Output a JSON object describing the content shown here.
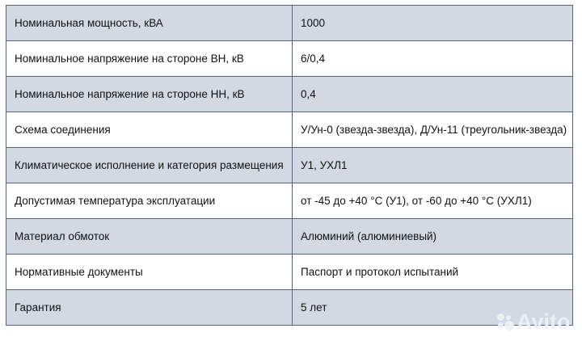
{
  "table": {
    "rows": [
      {
        "param": "Номинальная мощность, кВА",
        "value": "1000"
      },
      {
        "param": "Номинальное напряжение на стороне ВН, кВ",
        "value": "6/0,4"
      },
      {
        "param": "Номинальное напряжение на стороне НН, кВ",
        "value": "0,4"
      },
      {
        "param": "Схема соединения",
        "value": "У/Ун-0 (звезда-звезда), Д/Ун-11 (треугольник-звезда)"
      },
      {
        "param": "Климатическое исполнение и категория размещения",
        "value": "У1, УХЛ1"
      },
      {
        "param": "Допустимая температура эксплуатации",
        "value": "от -45 до +40 °С (У1), от -60 до +40 °С (УХЛ1)"
      },
      {
        "param": "Материал обмоток",
        "value": "Алюминий (алюминиевый)"
      },
      {
        "param": "Нормативные документы",
        "value": "Паспорт и протокол испытаний"
      },
      {
        "param": "Гарантия",
        "value": "5 лет"
      }
    ]
  },
  "watermark": {
    "text": "Avito"
  },
  "colors": {
    "row_shaded": "#d3d9e3",
    "border": "#56647a"
  }
}
